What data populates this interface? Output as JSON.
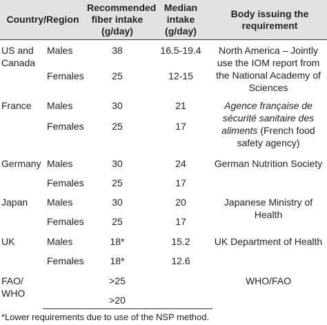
{
  "table": {
    "header": [
      "Country/Region",
      "Recommended fiber intake (g/day)",
      "Median intake (g/day)",
      "Body issuing the requirement"
    ],
    "groups": [
      {
        "country": "US and Canada",
        "rows": [
          {
            "sex": "Males",
            "recommended": "38",
            "median": "16.5-19.4"
          },
          {
            "sex": "Females",
            "recommended": "25",
            "median": "12-15"
          }
        ],
        "body": "North America – Jointly use the IOM report from the National Academy of Sciences"
      },
      {
        "country": "France",
        "rows": [
          {
            "sex": "Males",
            "recommended": "30",
            "median": "21"
          },
          {
            "sex": "Females",
            "recommended": "25",
            "median": "17"
          }
        ],
        "body_italic": "Agence française de sécurité sanitaire des aliments",
        "body": "(French food safety agency)"
      },
      {
        "country": "Germany",
        "rows": [
          {
            "sex": "Males",
            "recommended": "30",
            "median": "24"
          },
          {
            "sex": "Females",
            "recommended": "25",
            "median": "17"
          }
        ],
        "body": "German Nutrition Society"
      },
      {
        "country": "Japan",
        "rows": [
          {
            "sex": "Males",
            "recommended": "30",
            "median": "20"
          },
          {
            "sex": "Females",
            "recommended": "25",
            "median": "17"
          }
        ],
        "body": "Japanese Ministry of Health"
      },
      {
        "country": "UK",
        "rows": [
          {
            "sex": "Males",
            "recommended": "18*",
            "median": "15.2"
          },
          {
            "sex": "Females",
            "recommended": "18*",
            "median": "12.6"
          }
        ],
        "body": "UK Department of Health"
      },
      {
        "country": "FAO/ WHO",
        "rows": [
          {
            "recommended": ">25"
          },
          {
            "recommended": ">20"
          }
        ],
        "body": "WHO/FAO"
      }
    ],
    "footnote": "*Lower requirements due to use of the NSP method."
  }
}
